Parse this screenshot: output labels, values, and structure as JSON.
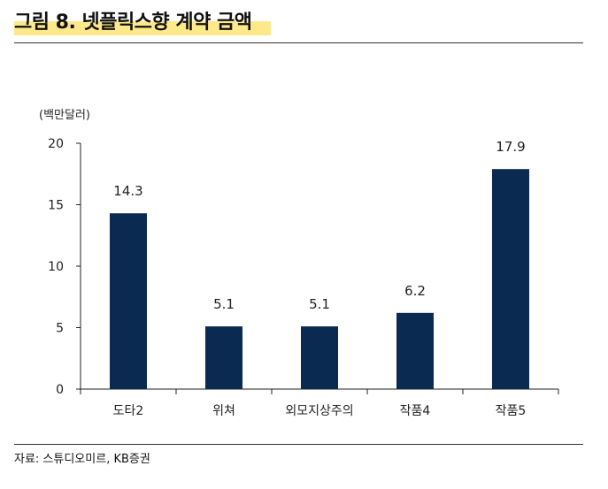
{
  "header": {
    "title": "그림 8. 넷플릭스향 계약 금액"
  },
  "footer": {
    "source": "자료: 스튜디오미르, KB증권"
  },
  "chart_data": {
    "type": "bar",
    "unit_label": "(백만달러)",
    "categories": [
      "도타2",
      "위쳐",
      "외모지상주의",
      "작품4",
      "작품5"
    ],
    "values": [
      14.3,
      5.1,
      5.1,
      6.2,
      17.9
    ],
    "data_labels": [
      "14.3",
      "5.1",
      "5.1",
      "6.2",
      "17.9"
    ],
    "y_ticks": [
      0,
      5,
      10,
      15,
      20
    ],
    "ylim": [
      0,
      20
    ],
    "bar_color": "#0b2a52",
    "grid": false
  }
}
